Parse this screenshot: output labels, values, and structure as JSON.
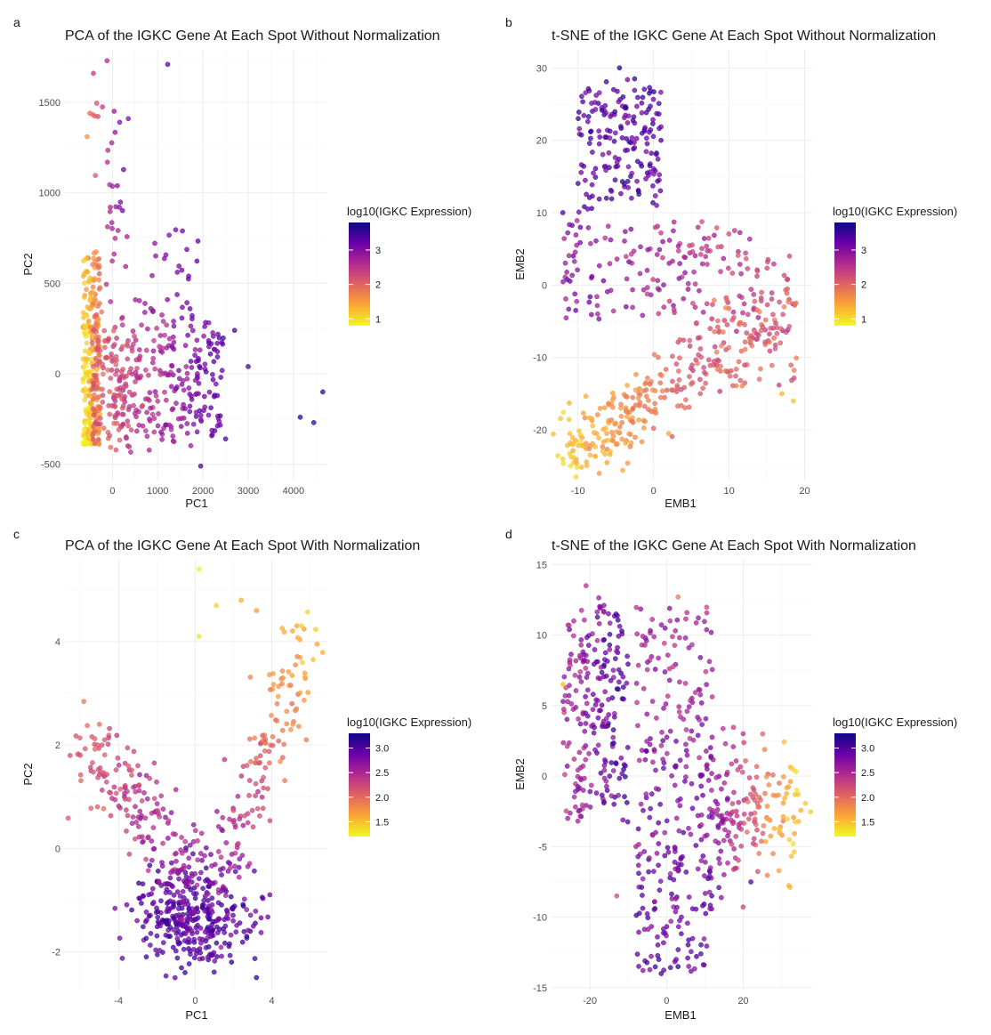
{
  "figure": {
    "panel_labels": [
      "a",
      "b",
      "c",
      "d"
    ]
  },
  "colors": {
    "scale": [
      "#0d0887",
      "#6a00a8",
      "#b12a90",
      "#e16462",
      "#fca636",
      "#f0f921"
    ],
    "grid": "#ebebeb",
    "point_alpha": 0.75
  },
  "chart_data": [
    {
      "type": "scatter",
      "panel": "a",
      "title": "PCA of the IGKC Gene At Each Spot Without Normalization",
      "xlabel": "PC1",
      "ylabel": "PC2",
      "xlim": [
        -1050,
        4750
      ],
      "ylim": [
        -590,
        1790
      ],
      "xticks": [
        0,
        1000,
        2000,
        3000,
        4000
      ],
      "xtick_labels": [
        "0",
        "1000",
        "2000",
        "3000",
        "4000"
      ],
      "yticks": [
        -500,
        0,
        500,
        1000,
        1500
      ],
      "ytick_labels": [
        "-500",
        "0",
        "500",
        "1000",
        "1500"
      ],
      "grid": true,
      "legend": {
        "title": "log10(IGKC Expression)",
        "range": [
          0.8,
          3.8
        ],
        "ticks": [
          1,
          2,
          3
        ],
        "tick_labels": [
          "1",
          "2",
          "3"
        ],
        "placement": "right"
      },
      "highlighted_points": [
        {
          "x": -650,
          "y": -380,
          "v": 0.85
        },
        {
          "x": -600,
          "y": -100,
          "v": 1.1
        },
        {
          "x": -560,
          "y": 1310,
          "v": 1.6
        },
        {
          "x": -500,
          "y": 1440,
          "v": 1.9
        },
        {
          "x": -420,
          "y": 1660,
          "v": 2.4
        },
        {
          "x": -120,
          "y": 1730,
          "v": 2.6
        },
        {
          "x": 1220,
          "y": 1710,
          "v": 3.3
        },
        {
          "x": 350,
          "y": 1410,
          "v": 3.0
        },
        {
          "x": 2700,
          "y": 240,
          "v": 3.5
        },
        {
          "x": 3000,
          "y": 40,
          "v": 3.5
        },
        {
          "x": 4150,
          "y": -240,
          "v": 3.6
        },
        {
          "x": 4450,
          "y": -270,
          "v": 3.6
        },
        {
          "x": 4650,
          "y": -100,
          "v": 3.6
        },
        {
          "x": 1950,
          "y": -510,
          "v": 3.4
        },
        {
          "x": 2500,
          "y": -360,
          "v": 3.4
        }
      ],
      "cloud_spec": "dense vertical band near PC1 = -650..-300 spanning PC2 -390..800 (orange/yellow), main body PC1 -500..2500, PC2 -350..300 (magenta/purple), sparse tail to PC1 4650"
    },
    {
      "type": "scatter",
      "panel": "b",
      "title": "t-SNE of the IGKC Gene At Each Spot Without Normalization",
      "xlabel": "EMB1",
      "ylabel": "EMB2",
      "xlim": [
        -13.5,
        21
      ],
      "ylim": [
        -27,
        32.5
      ],
      "xticks": [
        -10,
        0,
        10,
        20
      ],
      "xtick_labels": [
        "-10",
        "0",
        "10",
        "20"
      ],
      "yticks": [
        -20,
        -10,
        0,
        10,
        20,
        30
      ],
      "ytick_labels": [
        "-20",
        "-10",
        "0",
        "10",
        "20",
        "30"
      ],
      "grid": true,
      "legend": {
        "title": "log10(IGKC Expression)",
        "range": [
          0.8,
          3.8
        ],
        "ticks": [
          1,
          2,
          3
        ],
        "tick_labels": [
          "1",
          "2",
          "3"
        ],
        "placement": "right"
      },
      "highlighted_points": [
        {
          "x": -4.5,
          "y": 30,
          "v": 3.7
        },
        {
          "x": -2.5,
          "y": 28.5,
          "v": 3.6
        },
        {
          "x": 1,
          "y": 20,
          "v": 3.5
        },
        {
          "x": -12,
          "y": 10,
          "v": 3.4
        },
        {
          "x": 18,
          "y": 4,
          "v": 2.3
        },
        {
          "x": 17,
          "y": -15,
          "v": 1.3
        },
        {
          "x": 18.5,
          "y": -16,
          "v": 1.2
        },
        {
          "x": -12,
          "y": -24,
          "v": 1.1
        },
        {
          "x": -11,
          "y": -25,
          "v": 1.0
        },
        {
          "x": 2,
          "y": -20.5,
          "v": 1.4
        }
      ],
      "cloud_spec": "upper cluster EMB1 -10..1, EMB2 12..29 (dark purple); mid band EMB1 -12..18, EMB2 -5..10 (purple/magenta); lower arm EMB1 -12..19, EMB2 -25..-5 (orange/yellow)"
    },
    {
      "type": "scatter",
      "panel": "c",
      "title": "PCA of the IGKC Gene At Each Spot With Normalization",
      "xlabel": "PC1",
      "ylabel": "PC2",
      "xlim": [
        -6.8,
        6.9
      ],
      "ylim": [
        -2.75,
        5.6
      ],
      "xticks": [
        -4,
        0,
        4
      ],
      "xtick_labels": [
        "-4",
        "0",
        "4"
      ],
      "yticks": [
        -2,
        0,
        2,
        4
      ],
      "ytick_labels": [
        "-2",
        "0",
        "2",
        "4"
      ],
      "grid": true,
      "legend": {
        "title": "log10(IGKC Expression)",
        "range": [
          1.2,
          3.3
        ],
        "ticks": [
          1.5,
          2.0,
          2.5,
          3.0
        ],
        "tick_labels": [
          "1.5",
          "2.0",
          "2.5",
          "3.0"
        ],
        "placement": "right"
      },
      "highlighted_points": [
        {
          "x": 0.2,
          "y": 5.4,
          "v": 1.25
        },
        {
          "x": 1.1,
          "y": 4.7,
          "v": 1.4
        },
        {
          "x": 2.4,
          "y": 4.8,
          "v": 1.6
        },
        {
          "x": 3.2,
          "y": 4.6,
          "v": 1.7
        },
        {
          "x": 0.2,
          "y": 4.1,
          "v": 1.3
        },
        {
          "x": 5.3,
          "y": 2.7,
          "v": 1.8
        },
        {
          "x": 5.8,
          "y": 2.1,
          "v": 1.9
        },
        {
          "x": 3.2,
          "y": -2.5,
          "v": 3.2
        },
        {
          "x": 1.9,
          "y": -2.2,
          "v": 3.2
        },
        {
          "x": -6.0,
          "y": 1.8,
          "v": 2.2
        },
        {
          "x": -5.0,
          "y": 2.4,
          "v": 2.0
        }
      ],
      "cloud_spec": "V shape: left arm from (-6,2) down to (1.5,-2.2), dense purple at (0..3,-1..-2); right arm up to (5.5,4) in orange/yellow"
    },
    {
      "type": "scatter",
      "panel": "d",
      "title": "t-SNE of the IGKC Gene At Each Spot With Normalization",
      "xlabel": "EMB1",
      "ylabel": "EMB2",
      "xlim": [
        -30,
        38
      ],
      "ylim": [
        -15.2,
        15.4
      ],
      "xticks": [
        -20,
        0,
        20
      ],
      "xtick_labels": [
        "-20",
        "0",
        "20"
      ],
      "yticks": [
        -15,
        -10,
        -5,
        0,
        5,
        10,
        15
      ],
      "ytick_labels": [
        "-15",
        "-10",
        "-5",
        "0",
        "5",
        "10",
        "15"
      ],
      "grid": true,
      "legend": {
        "title": "log10(IGKC Expression)",
        "range": [
          1.2,
          3.3
        ],
        "ticks": [
          1.5,
          2.0,
          2.5,
          3.0
        ],
        "tick_labels": [
          "1.5",
          "2.0",
          "2.5",
          "3.0"
        ],
        "placement": "right"
      },
      "highlighted_points": [
        {
          "x": -21,
          "y": 13.5,
          "v": 2.4
        },
        {
          "x": 3,
          "y": 12.7,
          "v": 1.9
        },
        {
          "x": -27,
          "y": 6.5,
          "v": 1.5
        },
        {
          "x": 34,
          "y": -1,
          "v": 1.3
        },
        {
          "x": 33,
          "y": 0.5,
          "v": 1.4
        },
        {
          "x": 3,
          "y": -13.5,
          "v": 3.2
        },
        {
          "x": -2,
          "y": -13,
          "v": 3.1
        },
        {
          "x": 22,
          "y": -7.5,
          "v": 3.0
        },
        {
          "x": 20,
          "y": 3,
          "v": 2.4
        },
        {
          "x": -13,
          "y": -8.5,
          "v": 2.2
        }
      ],
      "cloud_spec": "left lobe EMB1 -28..-10, EMB2 -3..13 (magenta/pink); central stem EMB1 -8..12, EMB2 -14..12 (purple, dark at bottom); right wing EMB1 10..34, EMB2 -8..3 (orange/yellow at tip)"
    }
  ]
}
